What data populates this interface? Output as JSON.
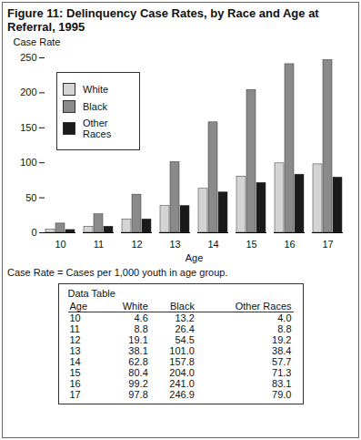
{
  "chart_data": {
    "type": "bar",
    "title": "Figure 11: Delinquency Case Rates, by Race and Age at Referral, 1995",
    "x_label": "Age",
    "y_label": "Case Rate",
    "note": "Case Rate = Cases per 1,000 youth in age group.",
    "categories": [
      "10",
      "11",
      "12",
      "13",
      "14",
      "15",
      "16",
      "17"
    ],
    "series": [
      {
        "name": "White",
        "color": "#d4d4d4",
        "values": [
          4.6,
          8.8,
          19.1,
          38.1,
          62.8,
          80.4,
          99.2,
          97.8
        ],
        "value_labels": [
          "4.6",
          "8.8",
          "19.1",
          "38.1",
          "62.8",
          "80.4",
          "99.2",
          "97.8"
        ]
      },
      {
        "name": "Black",
        "color": "#8a8a8a",
        "values": [
          13.2,
          26.4,
          54.5,
          101.0,
          157.8,
          204.0,
          241.0,
          246.9
        ],
        "value_labels": [
          "13.2",
          "26.4",
          "54.5",
          "101.0",
          "157.8",
          "204.0",
          "241.0",
          "246.9"
        ]
      },
      {
        "name": "Other Races",
        "color": "#1a1a1a",
        "values": [
          4.0,
          8.8,
          19.2,
          38.4,
          57.7,
          71.3,
          83.1,
          79.0
        ],
        "value_labels": [
          "4.0",
          "8.8",
          "19.2",
          "38.4",
          "57.7",
          "71.3",
          "83.1",
          "79.0"
        ]
      }
    ],
    "ylim": [
      0,
      250
    ],
    "yticks": [
      0,
      50,
      100,
      150,
      200,
      250
    ],
    "grid": false,
    "legend": "upper left",
    "table_title": "Data Table",
    "table_header": [
      "Age",
      "White",
      "Black",
      "Other Races"
    ]
  }
}
